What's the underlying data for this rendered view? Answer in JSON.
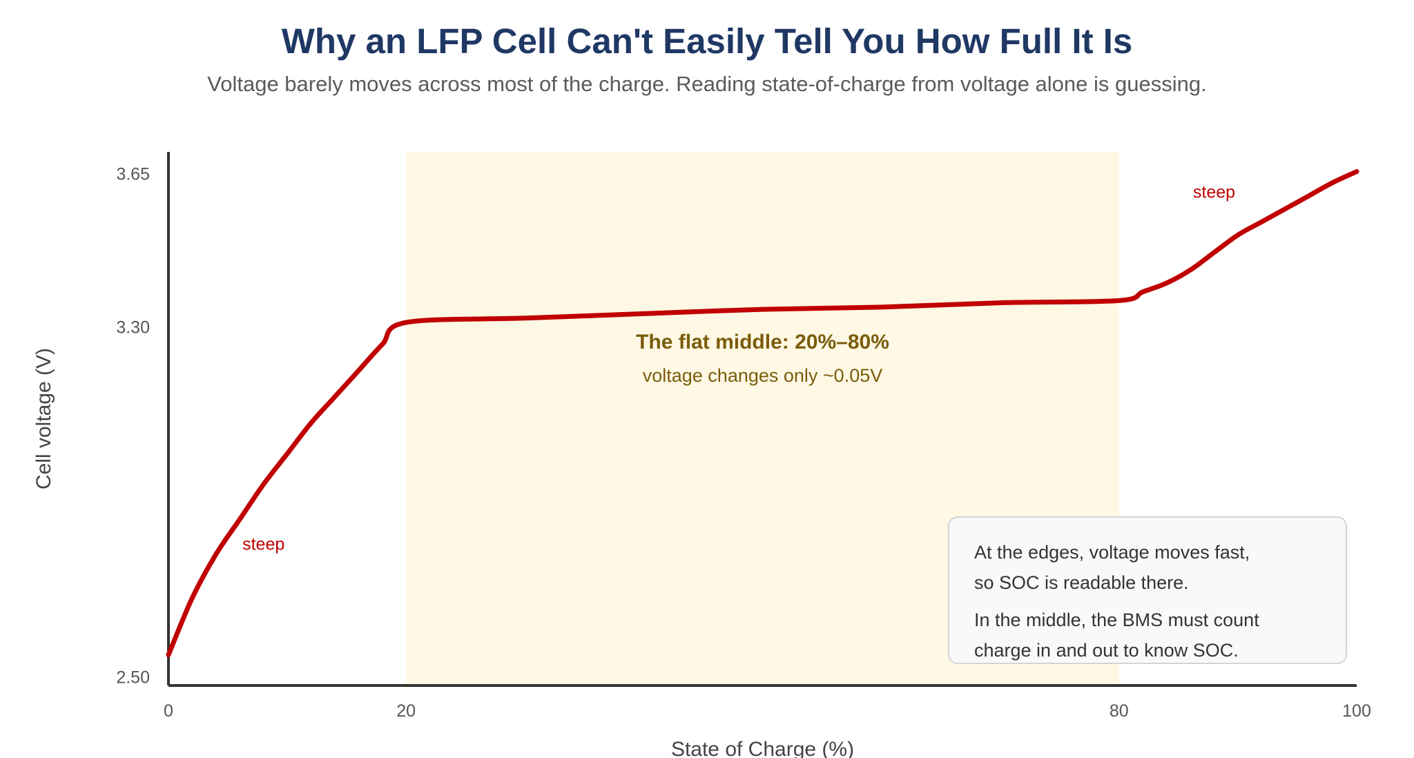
{
  "chart_data": {
    "type": "line",
    "title": "Why an LFP Cell Can't Easily Tell You How Full It Is",
    "subtitle": "Voltage barely moves across most of the charge. Reading state-of-charge from voltage alone is guessing.",
    "xlabel": "State of Charge (%)",
    "ylabel": "Cell voltage (V)",
    "xlim": [
      0,
      100
    ],
    "ylim": [
      2.48,
      3.7
    ],
    "x_ticks": [
      {
        "value": 0,
        "label": "0"
      },
      {
        "value": 20,
        "label": "20"
      },
      {
        "value": 80,
        "label": "80"
      },
      {
        "value": 100,
        "label": "100"
      }
    ],
    "y_ticks": [
      {
        "value": 2.5,
        "label": "2.50"
      },
      {
        "value": 3.3,
        "label": "3.30"
      },
      {
        "value": 3.65,
        "label": "3.65"
      }
    ],
    "grid": false,
    "series": [
      {
        "color": "#c00000",
        "x": [
          0,
          2,
          4,
          6,
          8,
          10,
          12,
          14,
          16,
          18,
          20,
          30,
          40,
          50,
          60,
          70,
          80,
          82,
          84,
          86,
          88,
          90,
          92,
          94,
          96,
          98,
          100
        ],
        "y": [
          2.55,
          2.68,
          2.78,
          2.86,
          2.94,
          3.01,
          3.08,
          3.14,
          3.2,
          3.26,
          3.31,
          3.32,
          3.33,
          3.34,
          3.345,
          3.355,
          3.36,
          3.38,
          3.4,
          3.43,
          3.47,
          3.51,
          3.54,
          3.57,
          3.6,
          3.63,
          3.655
        ]
      }
    ],
    "highlight_band": {
      "x_start": 20,
      "x_end": 80,
      "color": "#fff8e4",
      "title": "The flat middle: 20%–80%",
      "subtitle": "voltage changes only ~0.05V"
    },
    "annotations": [
      {
        "text": "steep",
        "x": 8,
        "y": 2.79,
        "color": "#c00000"
      },
      {
        "text": "steep",
        "x": 88,
        "y": 3.595,
        "color": "#c00000"
      }
    ],
    "note_box": {
      "lines_1": [
        "At the edges, voltage moves fast,",
        "so SOC is readable there."
      ],
      "lines_2": [
        "In the middle, the BMS must count",
        "charge in and out to know SOC."
      ]
    }
  }
}
